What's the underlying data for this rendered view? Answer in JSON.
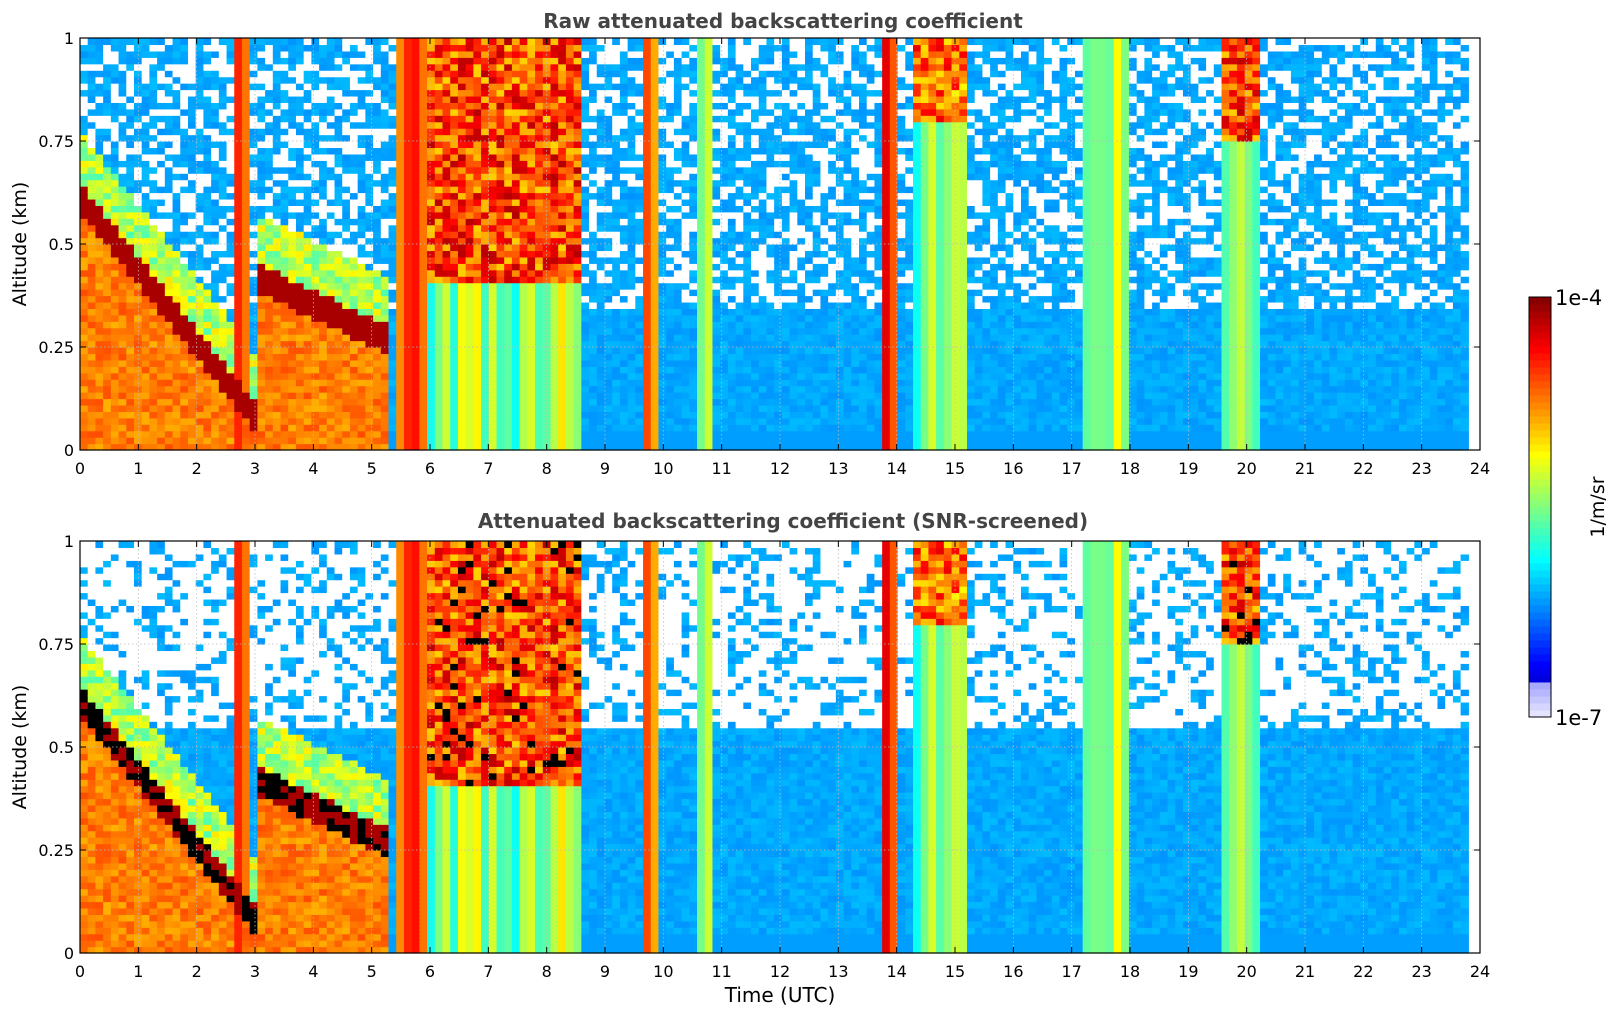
{
  "chart_data": [
    {
      "type": "heatmap",
      "title": "Raw attenuated backscattering coefficient",
      "xlabel": "",
      "ylabel": "Altitude (km)",
      "xlim": [
        0,
        24
      ],
      "ylim": [
        0,
        1
      ],
      "x_ticks": [
        "0",
        "1",
        "2",
        "3",
        "4",
        "5",
        "6",
        "7",
        "8",
        "9",
        "10",
        "11",
        "12",
        "13",
        "14",
        "15",
        "16",
        "17",
        "18",
        "19",
        "20",
        "21",
        "22",
        "23",
        "24"
      ],
      "y_ticks": [
        "0",
        "0.25",
        "0.5",
        "0.75",
        "1"
      ],
      "grid": true,
      "colorscale": "jet, log10 scale",
      "events": [
        {
          "t0": 0.0,
          "t1": 3.1,
          "kind": "boundary layer",
          "top_start": 0.65,
          "top_end": 0.1
        },
        {
          "t0": 3.1,
          "t1": 5.3,
          "kind": "boundary layer",
          "top_start": 0.45,
          "top_end": 0.3
        },
        {
          "t0": 2.6,
          "t1": 2.9,
          "kind": "precipitation",
          "level": 0.9
        },
        {
          "t0": 5.4,
          "t1": 6.0,
          "kind": "precipitation",
          "level": 0.9
        },
        {
          "t0": 6.0,
          "t1": 8.6,
          "kind": "cloud",
          "base": 0.4,
          "level": 0.95
        },
        {
          "t0": 9.6,
          "t1": 9.9,
          "kind": "precipitation",
          "level": 0.85
        },
        {
          "t0": 10.6,
          "t1": 10.9,
          "kind": "streak",
          "level": 0.7
        },
        {
          "t0": 13.7,
          "t1": 14.0,
          "kind": "precipitation",
          "level": 0.95
        },
        {
          "t0": 14.3,
          "t1": 15.2,
          "kind": "cloud",
          "base": 0.8,
          "level": 0.9
        },
        {
          "t0": 17.2,
          "t1": 18.0,
          "kind": "streak",
          "level": 0.65
        },
        {
          "t0": 19.6,
          "t1": 20.2,
          "kind": "cloud",
          "base": 0.75,
          "level": 0.95
        }
      ]
    },
    {
      "type": "heatmap",
      "title": "Attenuated backscattering coefficient (SNR-screened)",
      "xlabel": "Time (UTC)",
      "ylabel": "Altitude (km)",
      "xlim": [
        0,
        24
      ],
      "ylim": [
        0,
        1
      ],
      "x_ticks": [
        "0",
        "1",
        "2",
        "3",
        "4",
        "5",
        "6",
        "7",
        "8",
        "9",
        "10",
        "11",
        "12",
        "13",
        "14",
        "15",
        "16",
        "17",
        "18",
        "19",
        "20",
        "21",
        "22",
        "23",
        "24"
      ],
      "y_ticks": [
        "0",
        "0.25",
        "0.5",
        "0.75",
        "1"
      ],
      "grid": true,
      "colorscale": "jet, log10 scale",
      "screened": true
    }
  ],
  "colorbar": {
    "label": "1/m/sr",
    "max_label": "1e-4",
    "min_label": "1e-7"
  }
}
